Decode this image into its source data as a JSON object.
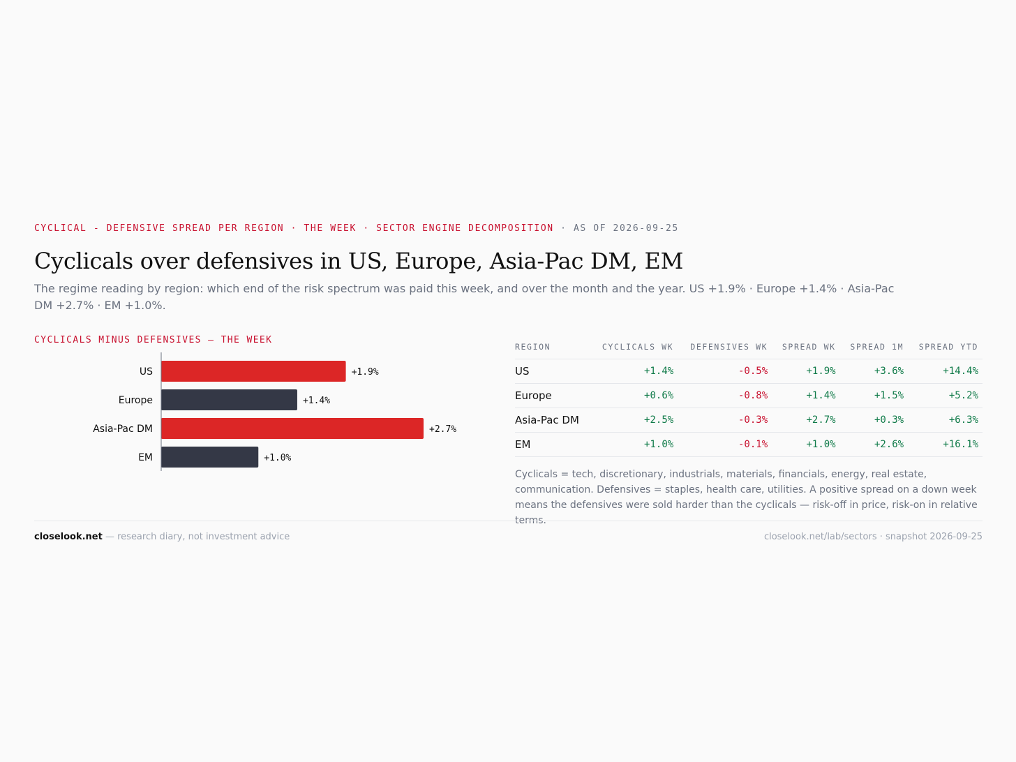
{
  "header": {
    "kicker": "CYCLICAL - DEFENSIVE SPREAD PER REGION · THE WEEK · SECTOR ENGINE DECOMPOSITION",
    "asof": " · AS OF 2026-09-25",
    "title": "Cyclicals over defensives in US, Europe, Asia-Pac DM, EM",
    "subtitle": "The regime reading by region: which end of the risk spectrum was paid this week, and over the month and the year. US +1.9% · Europe +1.4% · Asia-Pac DM +2.7% · EM +1.0%."
  },
  "chart_data": {
    "type": "bar",
    "orientation": "horizontal",
    "title": "CYCLICALS MINUS DEFENSIVES — THE WEEK",
    "categories": [
      "US",
      "Europe",
      "Asia-Pac DM",
      "EM"
    ],
    "values": [
      1.9,
      1.4,
      2.7,
      1.0
    ],
    "value_labels": [
      "+1.9%",
      "+1.4%",
      "+2.7%",
      "+1.0%"
    ],
    "colors": [
      "#dc2626",
      "#343846",
      "#dc2626",
      "#343846"
    ],
    "xlim": [
      0,
      2.7
    ],
    "grid": false
  },
  "table": {
    "headers": [
      "REGION",
      "CYCLICALS WK",
      "DEFENSIVES WK",
      "SPREAD WK",
      "SPREAD 1M",
      "SPREAD YTD"
    ],
    "rows": [
      [
        "US",
        "+1.4%",
        "-0.5%",
        "+1.9%",
        "+3.6%",
        "+14.4%"
      ],
      [
        "Europe",
        "+0.6%",
        "-0.8%",
        "+1.4%",
        "+1.5%",
        "+5.2%"
      ],
      [
        "Asia-Pac DM",
        "+2.5%",
        "-0.3%",
        "+2.7%",
        "+0.3%",
        "+6.3%"
      ],
      [
        "EM",
        "+1.0%",
        "-0.1%",
        "+1.0%",
        "+2.6%",
        "+16.1%"
      ]
    ],
    "note": "Cyclicals = tech, discretionary, industrials, materials, financials, energy, real estate, communication. Defensives = staples, health care, utilities. A positive spread on a down week means the defensives were sold harder than the cyclicals — risk-off in price, risk-on in relative terms."
  },
  "footer": {
    "brand": "closelook.net",
    "tagline": " — research diary, not investment advice",
    "right": "closelook.net/lab/sectors · snapshot 2026-09-25"
  },
  "colors": {
    "accent": "#c8102e",
    "bar_red": "#dc2626",
    "bar_dark": "#343846",
    "positive": "#0f7a48",
    "negative": "#c8102e"
  }
}
